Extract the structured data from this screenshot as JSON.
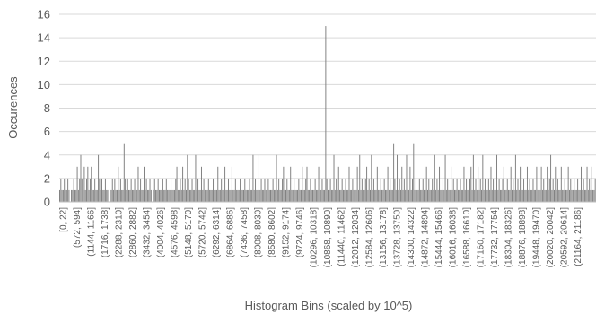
{
  "chart_data": {
    "type": "bar",
    "title": "",
    "xlabel": "Histogram Bins (scaled by 10^5)",
    "ylabel": "Occurences",
    "ylim": [
      0,
      16
    ],
    "yticks": [
      0,
      2,
      4,
      6,
      8,
      10,
      12,
      14,
      16
    ],
    "grid": true,
    "legend": "none",
    "bin_width": 22,
    "tick_labels": [
      "[0, 22]",
      "(572, 594]",
      "(1144, 1166]",
      "(1716, 1738]",
      "(2288, 2310]",
      "(2860, 2882]",
      "(3432, 3454]",
      "(4004, 4026]",
      "(4576, 4598]",
      "(5148, 5170]",
      "(5720, 5742]",
      "(6292, 6314]",
      "(6864, 6886]",
      "(7436, 7458]",
      "(8008, 8030]",
      "(8580, 8602]",
      "(9152, 9174]",
      "(9724, 9746]",
      "(10296, 10318]",
      "(10868, 10890]",
      "(11440, 11462]",
      "(12012, 12034]",
      "(12584, 12606]",
      "(13156, 13178]",
      "(13728, 13750]",
      "(14300, 14322]",
      "(14872, 14894]",
      "(15444, 15466]",
      "(16016, 16038]",
      "(16588, 16610]",
      "(17160, 17182]",
      "(17732, 17754]",
      "(18304, 18326]",
      "(18876, 18898]",
      "(19448, 19470]",
      "(20020, 20042]",
      "(20592, 20614]",
      "(21164, 21186]"
    ],
    "values": [
      1,
      2,
      1,
      1,
      2,
      1,
      1,
      2,
      1,
      0,
      1,
      1,
      2,
      1,
      1,
      3,
      1,
      2,
      4,
      2,
      1,
      3,
      1,
      2,
      3,
      1,
      2,
      3,
      1,
      1,
      2,
      1,
      1,
      4,
      2,
      1,
      2,
      1,
      1,
      2,
      1,
      1,
      0,
      1,
      1,
      2,
      1,
      2,
      1,
      1,
      3,
      1,
      2,
      1,
      1,
      5,
      2,
      1,
      2,
      1,
      1,
      2,
      1,
      1,
      2,
      1,
      1,
      3,
      1,
      2,
      1,
      1,
      3,
      1,
      2,
      1,
      1,
      2,
      1,
      0,
      1,
      2,
      1,
      1,
      2,
      1,
      1,
      1,
      2,
      1,
      1,
      2,
      1,
      1,
      1,
      2,
      1,
      1,
      1,
      2,
      3,
      1,
      1,
      2,
      1,
      3,
      1,
      2,
      1,
      4,
      2,
      1,
      1,
      2,
      1,
      1,
      4,
      1,
      2,
      1,
      1,
      3,
      1,
      2,
      1,
      1,
      1,
      2,
      1,
      1,
      1,
      2,
      1,
      1,
      1,
      3,
      1,
      1,
      2,
      1,
      1,
      3,
      1,
      1,
      2,
      1,
      1,
      3,
      1,
      1,
      2,
      1,
      1,
      1,
      2,
      1,
      1,
      1,
      2,
      1,
      1,
      1,
      2,
      1,
      1,
      4,
      1,
      2,
      1,
      1,
      4,
      1,
      2,
      1,
      1,
      2,
      1,
      1,
      2,
      1,
      1,
      1,
      2,
      1,
      1,
      4,
      1,
      2,
      1,
      1,
      2,
      3,
      1,
      1,
      2,
      1,
      1,
      3,
      1,
      1,
      2,
      1,
      1,
      1,
      2,
      1,
      1,
      3,
      1,
      1,
      2,
      3,
      1,
      1,
      2,
      1,
      1,
      1,
      2,
      1,
      1,
      3,
      1,
      1,
      2,
      1,
      1,
      15,
      2,
      1,
      1,
      2,
      1,
      1,
      4,
      1,
      2,
      1,
      3,
      1,
      1,
      2,
      1,
      1,
      2,
      1,
      1,
      3,
      1,
      1,
      2,
      1,
      1,
      1,
      3,
      1,
      4,
      1,
      2,
      1,
      1,
      2,
      3,
      1,
      2,
      1,
      4,
      1,
      2,
      1,
      1,
      3,
      1,
      1,
      2,
      1,
      1,
      2,
      1,
      1,
      3,
      1,
      2,
      1,
      1,
      5,
      2,
      1,
      4,
      1,
      2,
      1,
      3,
      1,
      2,
      1,
      4,
      1,
      1,
      3,
      1,
      2,
      5,
      1,
      2,
      1,
      1,
      2,
      1,
      1,
      2,
      1,
      1,
      3,
      1,
      2,
      1,
      1,
      2,
      1,
      4,
      1,
      2,
      1,
      3,
      1,
      1,
      2,
      1,
      4,
      1,
      2,
      1,
      1,
      3,
      1,
      2,
      1,
      1,
      2,
      1,
      1,
      2,
      1,
      1,
      3,
      1,
      2,
      1,
      1,
      2,
      3,
      1,
      4,
      1,
      2,
      1,
      3,
      1,
      2,
      1,
      4,
      1,
      2,
      1,
      1,
      2,
      1,
      3,
      1,
      2,
      1,
      1,
      4,
      1,
      2,
      1,
      1,
      2,
      3,
      1,
      1,
      2,
      1,
      1,
      3,
      1,
      2,
      1,
      4,
      1,
      2,
      1,
      3,
      1,
      1,
      2,
      1,
      1,
      3,
      1,
      2,
      1,
      1,
      2,
      1,
      1,
      3,
      1,
      2,
      1,
      3,
      1,
      2,
      1,
      1,
      3,
      1,
      2,
      4,
      1,
      2,
      1,
      3,
      1,
      2,
      1,
      1,
      3,
      1,
      1,
      2,
      1,
      1,
      3,
      1,
      2,
      1,
      1,
      2,
      1,
      1,
      2,
      1,
      1,
      3,
      1,
      2,
      1,
      1,
      3,
      1,
      2,
      1,
      3,
      1,
      1,
      2
    ]
  }
}
